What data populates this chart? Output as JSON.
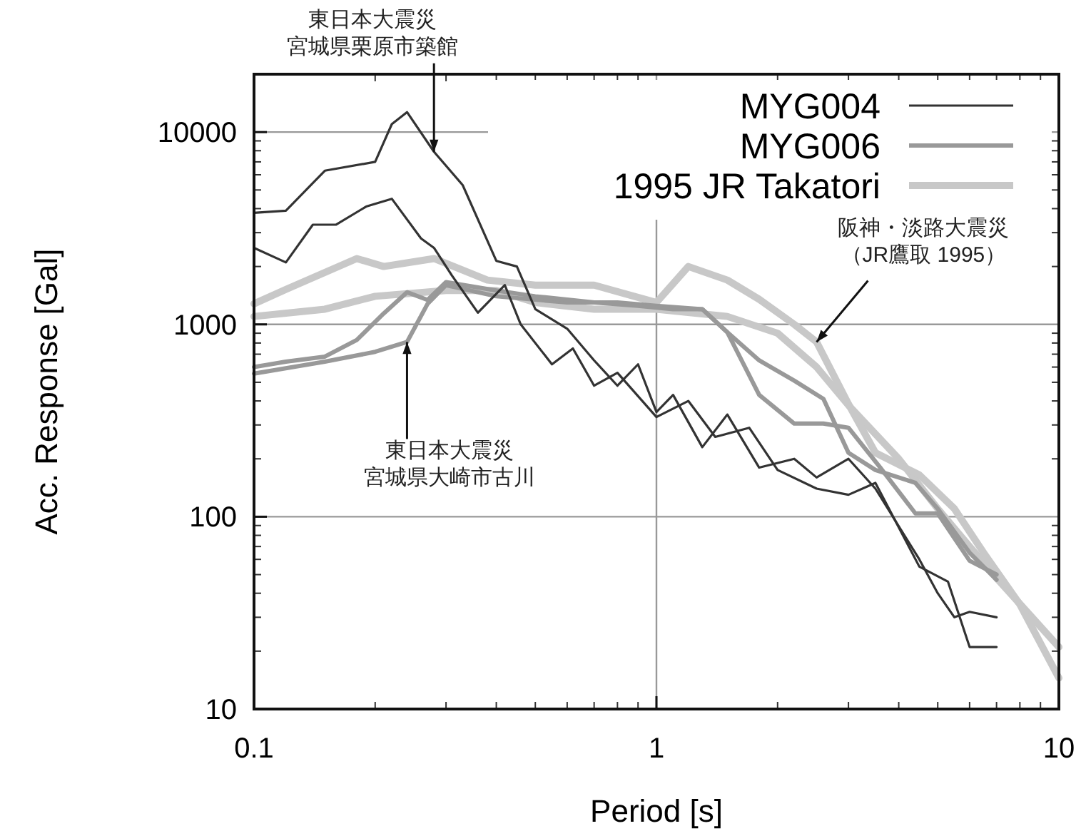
{
  "chart_data": {
    "type": "line",
    "xlabel": "Period [s]",
    "ylabel": "Acc. Response [Gal]",
    "log": "xy",
    "xlim": [
      0.1,
      10
    ],
    "ylim": [
      10,
      20000
    ],
    "xticks": [
      0.1,
      1,
      10
    ],
    "yticks": [
      10,
      100,
      1000,
      10000
    ],
    "grid": true,
    "legend": "top right",
    "marker": "none",
    "series": [
      {
        "name": "MYG004",
        "color": "#333333",
        "x": [
          0.1,
          0.12,
          0.15,
          0.2,
          0.22,
          0.24,
          0.28,
          0.33,
          0.4,
          0.45,
          0.5,
          0.6,
          0.7,
          0.8,
          0.9,
          1.0,
          1.1,
          1.3,
          1.5,
          1.8,
          2.2,
          2.5,
          3.0,
          3.5,
          4.5,
          5,
          5.5,
          6,
          7
        ],
        "values": [
          3800,
          3900,
          6300,
          7000,
          11000,
          12700,
          7900,
          5300,
          2140,
          2000,
          1200,
          950,
          650,
          480,
          620,
          350,
          430,
          230,
          340,
          180,
          200,
          160,
          200,
          140,
          60,
          40,
          30,
          32,
          30
        ]
      },
      {
        "color": "#333333",
        "x": [
          0.1,
          0.12,
          0.14,
          0.16,
          0.19,
          0.22,
          0.26,
          0.28,
          0.31,
          0.36,
          0.42,
          0.46,
          0.55,
          0.62,
          0.7,
          0.8,
          1.0,
          1.2,
          1.4,
          1.7,
          2.0,
          2.5,
          3.0,
          3.5,
          4.5,
          5.3,
          6,
          7
        ],
        "values": [
          2500,
          2100,
          3300,
          3300,
          4100,
          4500,
          2800,
          2500,
          1800,
          1150,
          1600,
          1000,
          620,
          750,
          480,
          560,
          330,
          400,
          260,
          290,
          175,
          140,
          130,
          150,
          55,
          46,
          21,
          21
        ]
      },
      {
        "name": "MYG006",
        "color": "#999999",
        "x": [
          0.1,
          0.12,
          0.15,
          0.18,
          0.21,
          0.24,
          0.27,
          0.3,
          0.4,
          0.5,
          0.7,
          0.9,
          1.1,
          1.3,
          1.5,
          1.8,
          2.2,
          2.6,
          3.0,
          3.6,
          4.4,
          5.0,
          6.0,
          7.0
        ],
        "values": [
          600,
          640,
          680,
          830,
          1140,
          1470,
          1340,
          1660,
          1500,
          1400,
          1300,
          1250,
          1200,
          1200,
          910,
          430,
          305,
          305,
          290,
          180,
          104,
          104,
          59,
          50
        ]
      },
      {
        "color": "#999999",
        "x": [
          0.1,
          0.15,
          0.2,
          0.24,
          0.27,
          0.3,
          0.4,
          0.6,
          0.8,
          1.0,
          1.3,
          1.5,
          1.8,
          2.2,
          2.6,
          3.0,
          3.5,
          4.4,
          5.0,
          6.0,
          7.0
        ],
        "values": [
          555,
          640,
          720,
          810,
          1280,
          1600,
          1400,
          1300,
          1300,
          1250,
          1200,
          910,
          650,
          510,
          410,
          215,
          175,
          150,
          110,
          65,
          47
        ]
      },
      {
        "name": "1995 JR Takatori",
        "color": "#c8c8c8",
        "x": [
          0.1,
          0.12,
          0.18,
          0.21,
          0.28,
          0.38,
          0.5,
          0.7,
          1.0,
          1.2,
          1.5,
          1.8,
          2.2,
          2.5,
          3.0,
          3.5,
          4.5,
          5.5,
          6.5,
          8.0,
          10.0
        ],
        "values": [
          1280,
          1520,
          2200,
          2000,
          2200,
          1700,
          1600,
          1600,
          1300,
          2000,
          1700,
          1350,
          1000,
          810,
          385,
          215,
          165,
          110,
          65,
          35,
          14.5
        ]
      },
      {
        "color": "#c8c8c8",
        "x": [
          0.1,
          0.15,
          0.2,
          0.3,
          0.4,
          0.5,
          0.7,
          1.0,
          1.5,
          2.0,
          2.5,
          3.0,
          4.0,
          5.0,
          6.0,
          7.0,
          10.0
        ],
        "values": [
          1100,
          1200,
          1400,
          1500,
          1500,
          1300,
          1200,
          1200,
          1100,
          900,
          600,
          380,
          200,
          110,
          70,
          48,
          21
        ]
      }
    ],
    "annotations": [
      {
        "text": "東日本大震災宮城県栗原市築館",
        "x": 0.28,
        "y": 7900
      },
      {
        "text": "阪神・淡路大震災（JR鷹取 1995）",
        "x": 2.5,
        "y": 810
      },
      {
        "text": "東日本大震災宮城県大崎市古川",
        "x": 0.24,
        "y": 810
      }
    ]
  }
}
